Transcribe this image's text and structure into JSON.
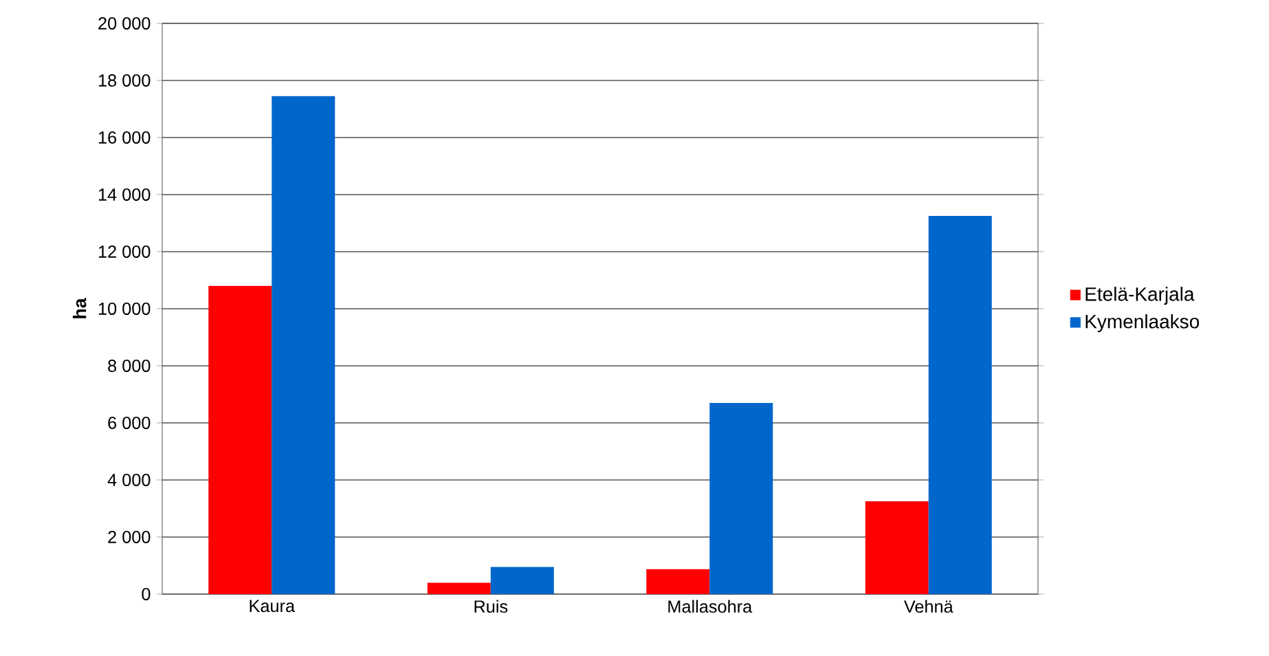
{
  "chart_data": {
    "type": "bar",
    "ylabel": "ha",
    "categories": [
      "Kaura",
      "Ruis",
      "Mallasohra",
      "Vehnä"
    ],
    "series": [
      {
        "name": "Etelä-Karjala",
        "color": "#ff0000",
        "values": [
          10800,
          400,
          870,
          3250
        ]
      },
      {
        "name": "Kymenlaakso",
        "color": "#0066cc",
        "values": [
          17450,
          950,
          6700,
          13250
        ]
      }
    ],
    "ylim": [
      0,
      20000
    ],
    "yticks": [
      {
        "value": 0,
        "label": "0"
      },
      {
        "value": 2000,
        "label": "2 000"
      },
      {
        "value": 4000,
        "label": "4 000"
      },
      {
        "value": 6000,
        "label": "6 000"
      },
      {
        "value": 8000,
        "label": "8 000"
      },
      {
        "value": 10000,
        "label": "10 000"
      },
      {
        "value": 12000,
        "label": "12 000"
      },
      {
        "value": 14000,
        "label": "14 000"
      },
      {
        "value": 16000,
        "label": "16 000"
      },
      {
        "value": 18000,
        "label": "18 000"
      },
      {
        "value": 20000,
        "label": "20 000"
      }
    ],
    "grid": "y",
    "legend": "right"
  }
}
